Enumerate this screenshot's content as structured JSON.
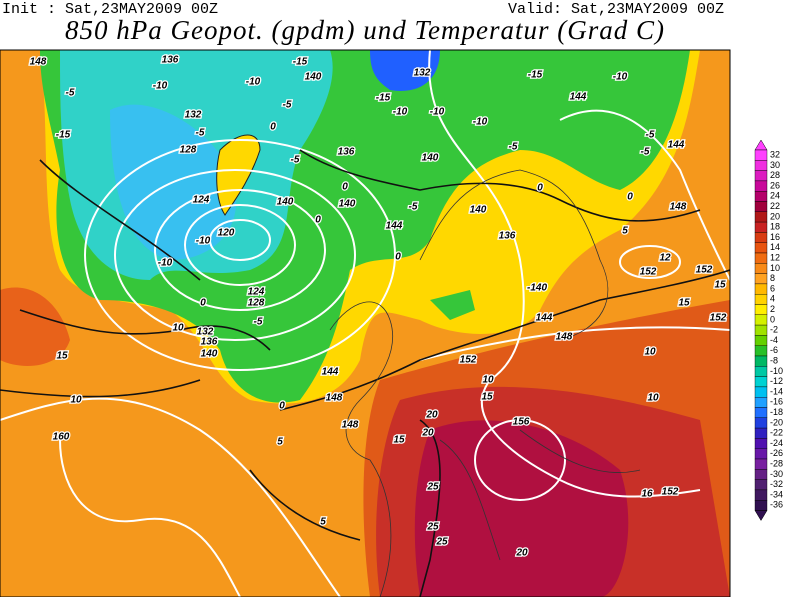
{
  "header": {
    "init": "Init : Sat,23MAY2009 00Z",
    "valid": "Valid: Sat,23MAY2009 00Z",
    "title": "850 hPa Geopot. (gpdm) und Temperatur (Grad C)"
  },
  "map": {
    "labels": [
      "148",
      "136",
      "-15",
      "140",
      "132",
      "-15",
      "-10",
      "-5",
      "-10",
      "-10",
      "132",
      "-5",
      "0",
      "-15",
      "-10",
      "-10",
      "-10",
      "144",
      "-15",
      "-5",
      "128",
      "-5",
      "136",
      "140",
      "-5",
      "-5",
      "144",
      "-5",
      "0",
      "0",
      "0",
      "124",
      "140",
      "140",
      "-5",
      "140",
      "148",
      "-10",
      "120",
      "0",
      "144",
      "136",
      "5",
      "-10",
      "0",
      "152",
      "12",
      "152",
      "15",
      "124",
      "-140",
      "0",
      "128",
      "15",
      "-5",
      "10",
      "132",
      "144",
      "152",
      "136",
      "148",
      "140",
      "15",
      "152",
      "10",
      "144",
      "10",
      "10",
      "0",
      "148",
      "15",
      "10",
      "20",
      "148",
      "156",
      "20",
      "15",
      "160",
      "5",
      "25",
      "16",
      "152",
      "5",
      "25",
      "25",
      "20"
    ]
  },
  "colorbar": {
    "levels": [
      32,
      30,
      28,
      26,
      24,
      22,
      20,
      18,
      16,
      14,
      12,
      10,
      8,
      6,
      4,
      2,
      0,
      -2,
      -4,
      -6,
      -8,
      -10,
      -12,
      -14,
      -16,
      -18,
      -20,
      -22,
      -24,
      -26,
      -28,
      -30,
      -32,
      -34,
      -36
    ],
    "colors": [
      "#ff40ff",
      "#f02ee0",
      "#dc1cc0",
      "#c8089a",
      "#b4006a",
      "#a0003c",
      "#b01818",
      "#c82222",
      "#d83c12",
      "#e85410",
      "#f06c12",
      "#f88a18",
      "#ffa222",
      "#ffb800",
      "#ffd200",
      "#ffee00",
      "#d4f000",
      "#a0e200",
      "#64d000",
      "#28c028",
      "#00b864",
      "#00c8a4",
      "#00d2d2",
      "#00c0f0",
      "#20a0ff",
      "#2070ff",
      "#2040e0",
      "#3020c0",
      "#5010b0",
      "#6818a8",
      "#7820a0",
      "#642084",
      "#502070",
      "#401860",
      "#301050"
    ]
  }
}
